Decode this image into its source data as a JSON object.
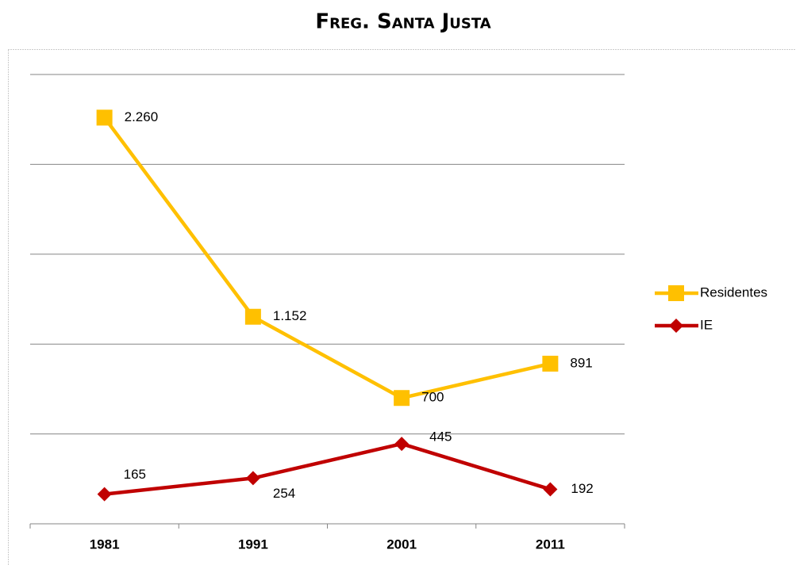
{
  "chart_data": {
    "type": "line",
    "title": "Freg. Santa Justa",
    "categories": [
      "1981",
      "1991",
      "2001",
      "2011"
    ],
    "series": [
      {
        "name": "Residentes",
        "color": "#FFC000",
        "marker": "square",
        "values": [
          2260,
          1152,
          700,
          891
        ],
        "value_labels": [
          "2.260",
          "1.152",
          "700",
          "891"
        ]
      },
      {
        "name": "IE",
        "color": "#C00000",
        "marker": "diamond",
        "values": [
          165,
          254,
          445,
          192
        ]
      }
    ],
    "ylim": [
      0,
      2500
    ],
    "yticks": [
      0,
      500,
      1000,
      1500,
      2000,
      2500
    ],
    "grid": true,
    "legend": "right"
  }
}
